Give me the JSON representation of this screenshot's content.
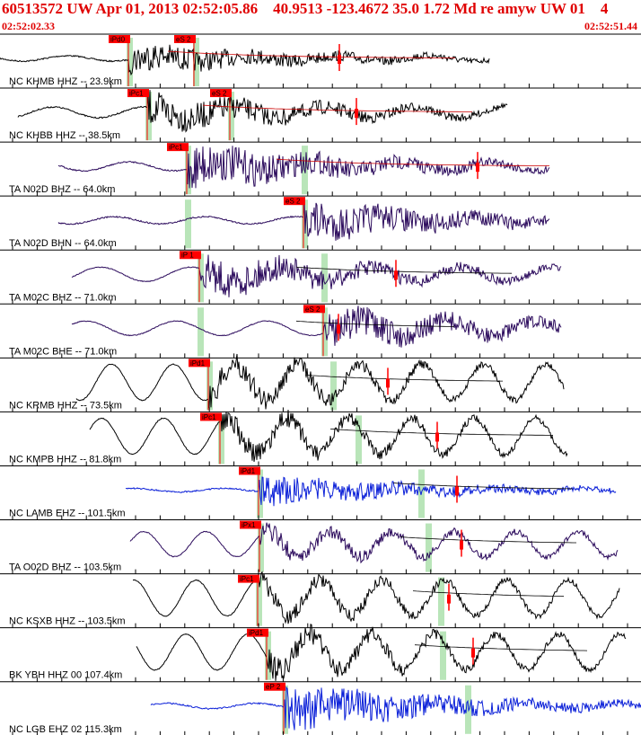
{
  "header": {
    "title": "60513572 UW Apr 01, 2013 02:52:05.86    40.9513 -123.4672 35.0 1.72 Md re amyw UW 01    4",
    "time_start": "02:52:02.33",
    "time_end": "02:52:51.44"
  },
  "colors": {
    "header_text": "#e00000",
    "pick_box": "#ff0000",
    "pick_window": "#b9e5b9",
    "trace_black": "#000000",
    "trace_purple": "#2b0a5c",
    "trace_blue": "#0a1fd8",
    "coda_curve": "#cc0000"
  },
  "traces": [
    {
      "label": "NC KHMB HHZ -- 23.9km",
      "picks": [
        "iPd0",
        "eS 2"
      ],
      "color": "black",
      "style": "noise"
    },
    {
      "label": "NC KHBB HHZ -- 38.5km",
      "picks": [
        "iPc1",
        "eS 2"
      ],
      "color": "black",
      "style": "noise"
    },
    {
      "label": "TA N02D BHZ -- 64.0km",
      "picks": [
        "iPc1"
      ],
      "color": "purple",
      "style": "noise"
    },
    {
      "label": "TA N02D BHN -- 64.0km",
      "picks": [
        "eS 2"
      ],
      "color": "purple",
      "style": "noise"
    },
    {
      "label": "TA M02C BHZ -- 71.0km",
      "picks": [
        "iP 1"
      ],
      "color": "purple",
      "style": "mixed"
    },
    {
      "label": "TA M02C BHE -- 71.0km",
      "picks": [
        "eS 2"
      ],
      "color": "purple",
      "style": "mixed"
    },
    {
      "label": "NC KRMB HHZ -- 73.5km",
      "picks": [
        "iPd1"
      ],
      "color": "black",
      "style": "wave"
    },
    {
      "label": "NC KMPB HHZ -- 81.8km",
      "picks": [
        "iPc1"
      ],
      "color": "black",
      "style": "wave"
    },
    {
      "label": "NC LAMB EHZ -- 101.5km",
      "picks": [
        "iPd1"
      ],
      "color": "blue",
      "style": "noise"
    },
    {
      "label": "TA O02D BHZ -- 103.5km",
      "picks": [
        "iPx1"
      ],
      "color": "purple",
      "style": "wave"
    },
    {
      "label": "NC KSXB HHZ -- 103.5km",
      "picks": [
        "iPc1"
      ],
      "color": "black",
      "style": "wave"
    },
    {
      "label": "BK YBH HHZ 00 107.4km",
      "picks": [
        "iPd1"
      ],
      "color": "black",
      "style": "wave"
    },
    {
      "label": "NC LGB EHZ 02 115.3km",
      "picks": [
        "eP 2"
      ],
      "color": "blue",
      "style": "noise"
    }
  ]
}
